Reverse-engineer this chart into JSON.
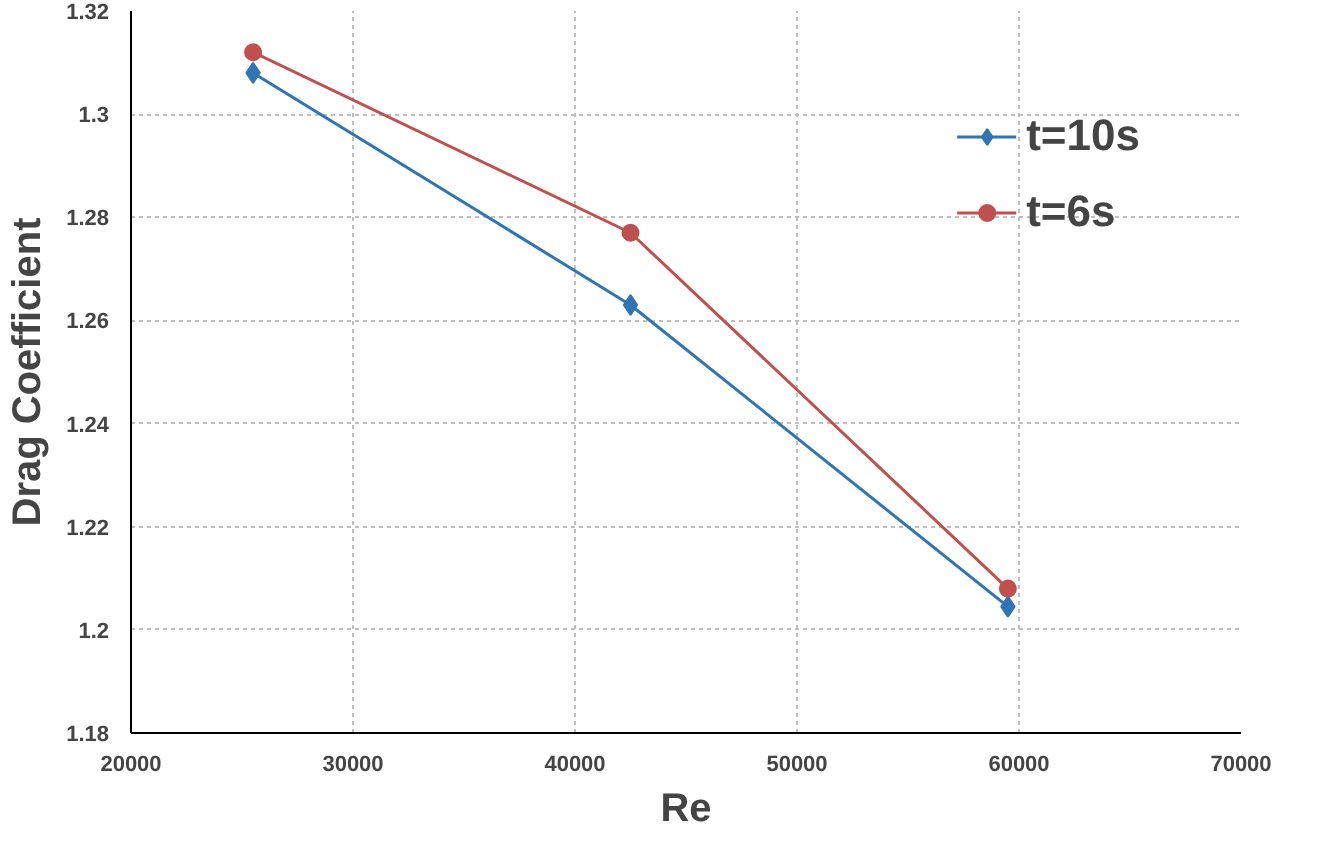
{
  "chart_data": {
    "type": "line",
    "xlabel": "Re",
    "ylabel": "Drag Coefficient",
    "x": [
      25500,
      42500,
      59500
    ],
    "series": [
      {
        "name": "t=10s",
        "color": "#2e75b6",
        "values": [
          1.308,
          1.263,
          1.2045
        ],
        "marker": "diamond"
      },
      {
        "name": "t=6s",
        "color": "#c0504d",
        "values": [
          1.312,
          1.277,
          1.208
        ],
        "marker": "circle"
      }
    ],
    "xlim": [
      20000,
      70000
    ],
    "xticks": [
      20000,
      30000,
      40000,
      50000,
      60000,
      70000
    ],
    "ylim": [
      1.18,
      1.32
    ],
    "yticks": [
      {
        "value": 1.18,
        "label": "1.18"
      },
      {
        "value": 1.2,
        "label": "1.2"
      },
      {
        "value": 1.22,
        "label": "1.22"
      },
      {
        "value": 1.24,
        "label": "1.24"
      },
      {
        "value": 1.26,
        "label": "1.26"
      },
      {
        "value": 1.28,
        "label": "1.28"
      },
      {
        "value": 1.3,
        "label": "1.3"
      },
      {
        "value": 1.32,
        "label": "1.32"
      }
    ],
    "grid": true,
    "legend": "top right",
    "line_style": "solid"
  }
}
